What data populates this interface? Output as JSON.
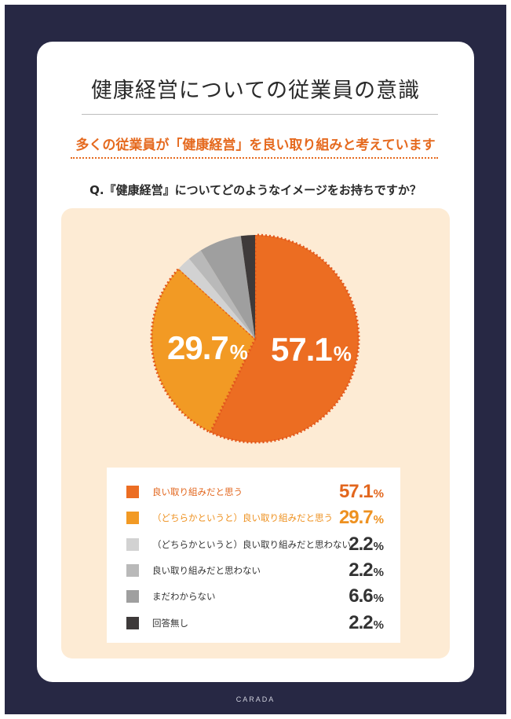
{
  "title": "健康経営についての従業員の意識",
  "subtitle": "多くの従業員が「健康経営」を良い取り組みと考えています",
  "question": "Q.『健康経営』についてどのようなイメージをお持ちですか？",
  "footer": "CARADA",
  "chart_data": {
    "type": "pie",
    "unit": "%",
    "slices": [
      {
        "label": "良い取り組みだと思う",
        "value": 57.1,
        "display": "57.1",
        "color": "#ec6d22",
        "label_color": "#e2661d"
      },
      {
        "label": "（どちらかというと）良い取り組みだと思う",
        "value": 29.7,
        "display": "29.7",
        "color": "#f29a24",
        "label_color": "#ee9120"
      },
      {
        "label": "（どちらかというと）良い取り組みだと思わない",
        "value": 2.2,
        "display": "2.2",
        "color": "#d2d2d2",
        "label_color": "#333333"
      },
      {
        "label": "良い取り組みだと思わない",
        "value": 2.2,
        "display": "2.2",
        "color": "#b9b9b9",
        "label_color": "#333333"
      },
      {
        "label": "まだわからない",
        "value": 6.6,
        "display": "6.6",
        "color": "#9f9f9f",
        "label_color": "#333333"
      },
      {
        "label": "回答無し",
        "value": 2.2,
        "display": "2.2",
        "color": "#3e3a3a",
        "label_color": "#333333"
      }
    ],
    "pie_labels": [
      {
        "slice": 0,
        "text": "57.1"
      },
      {
        "slice": 1,
        "text": "29.7"
      }
    ],
    "highlight_border": "#e2561b"
  }
}
